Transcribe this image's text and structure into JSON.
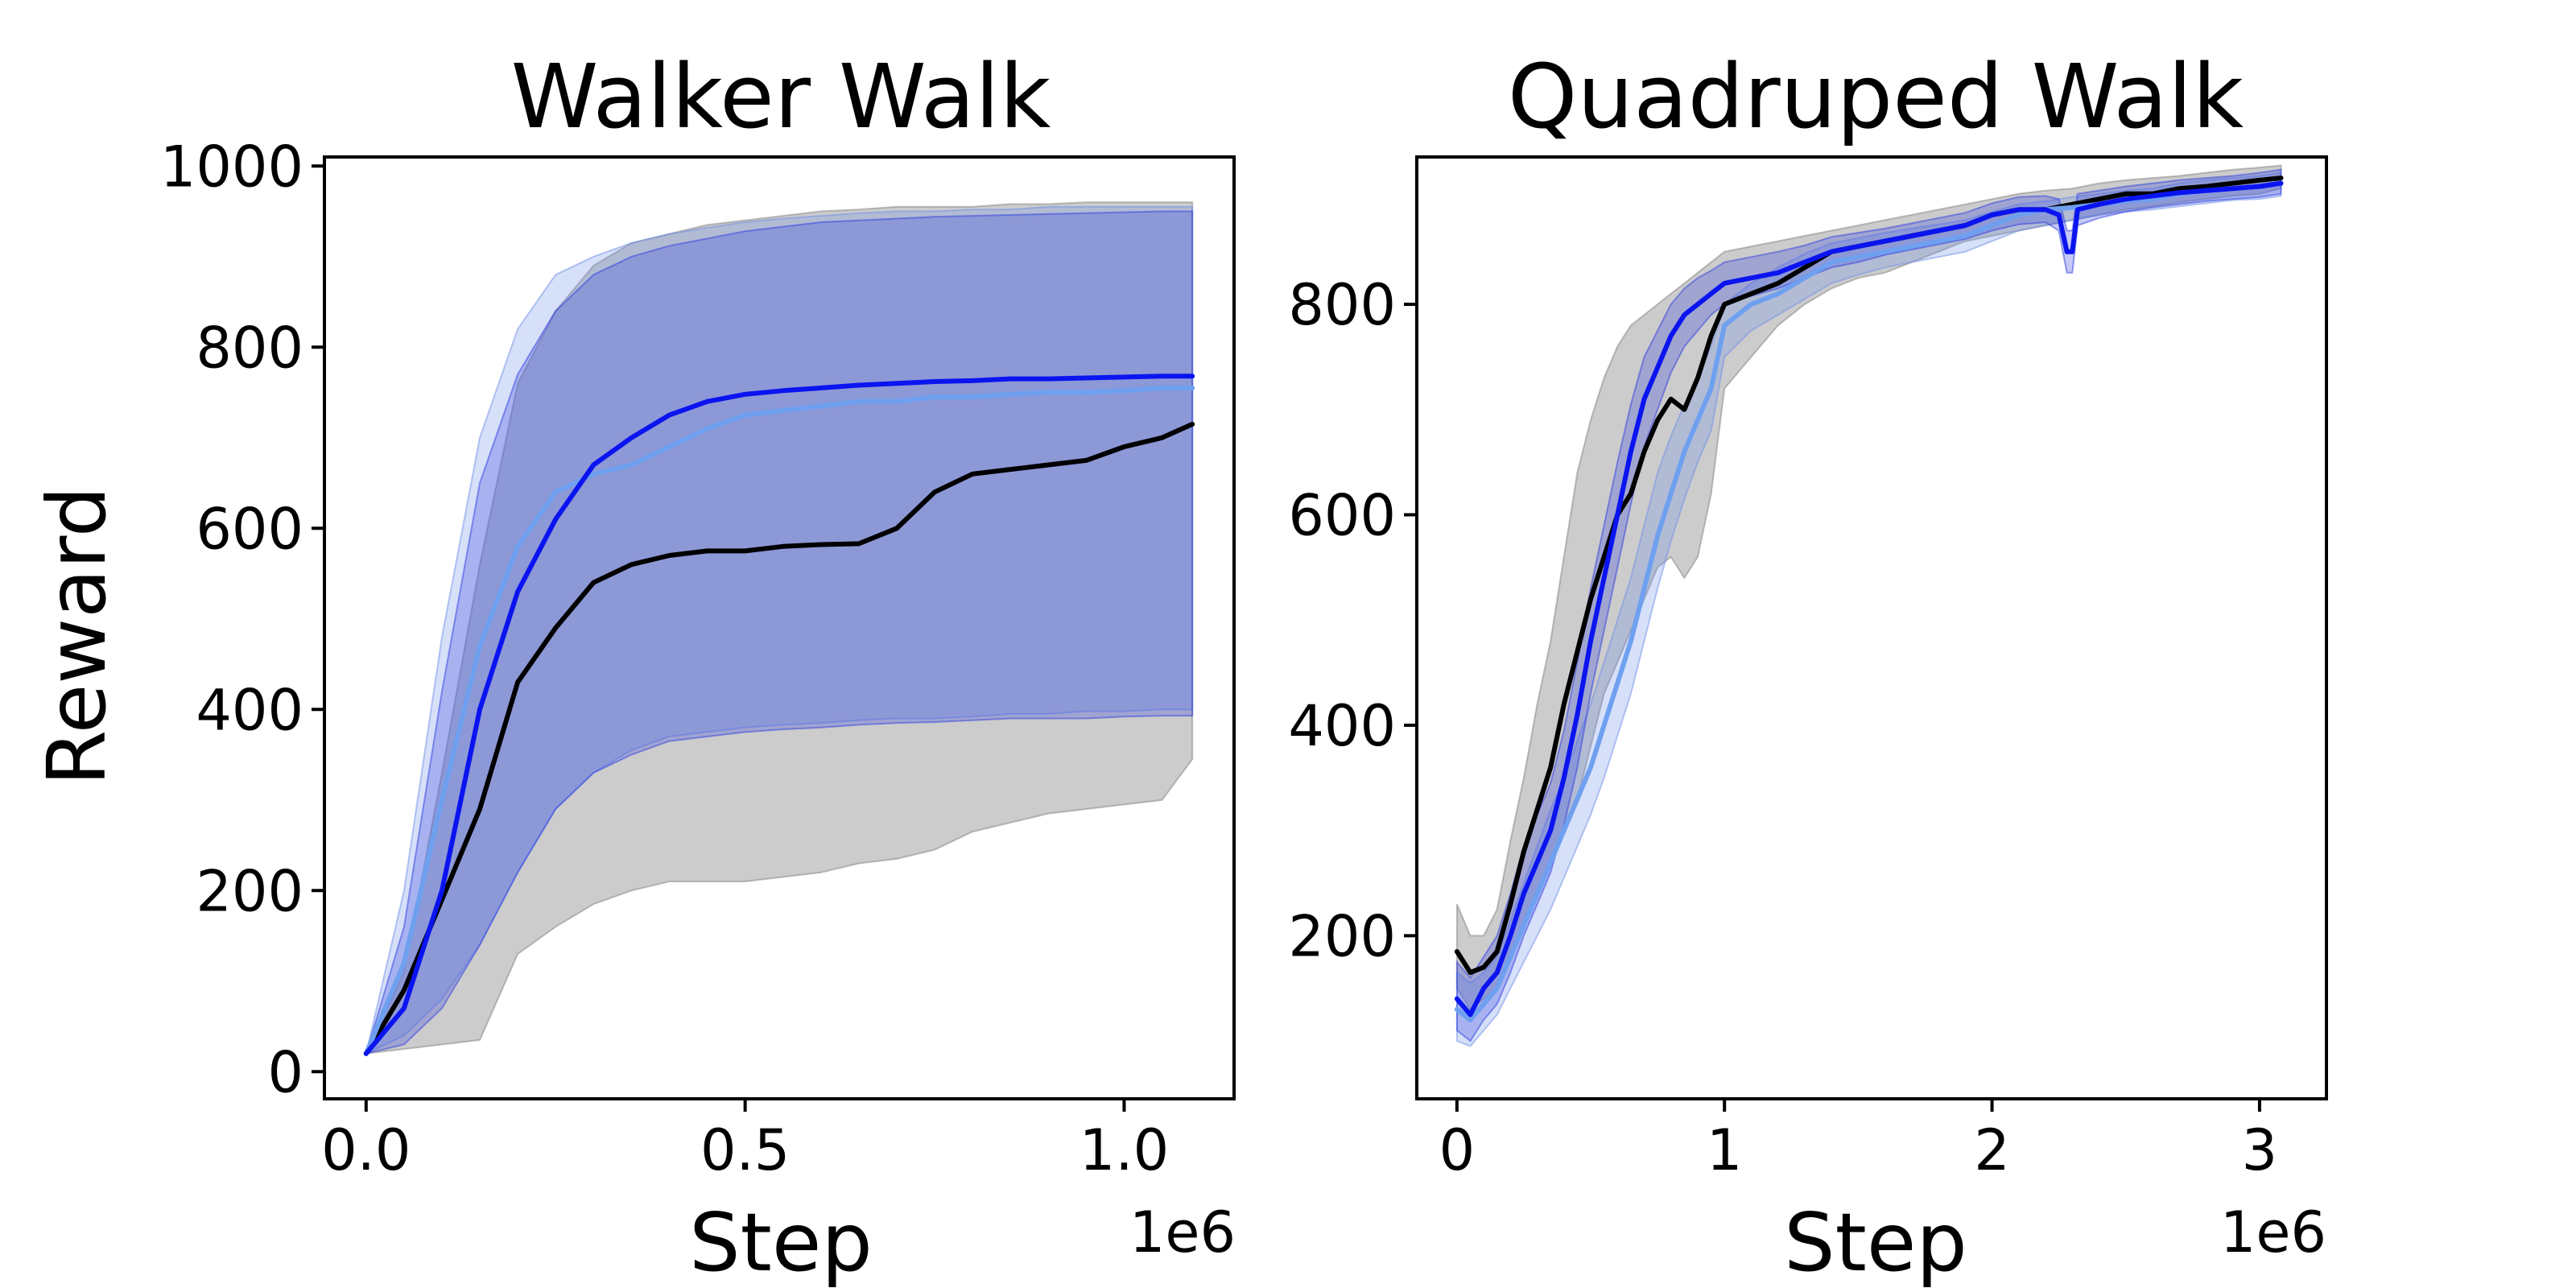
{
  "chart_data": [
    {
      "type": "line",
      "title": "Walker Walk",
      "xlabel": "Step",
      "ylabel": "Reward",
      "x_offset_label": "1e6",
      "xlim": [
        -0.055,
        1.145
      ],
      "ylim": [
        -30,
        1010
      ],
      "xticks": [
        0.0,
        0.5,
        1.0
      ],
      "xtick_labels": [
        "0.0",
        "0.5",
        "1.0"
      ],
      "yticks": [
        0,
        200,
        400,
        600,
        800,
        1000
      ],
      "ytick_labels": [
        "0",
        "200",
        "400",
        "600",
        "800",
        "1000"
      ],
      "grid": false,
      "legend": "none",
      "series": [
        {
          "color": "#000000",
          "band_color": "#7f7f7f",
          "x": [
            0.0,
            0.05,
            0.1,
            0.15,
            0.2,
            0.25,
            0.3,
            0.35,
            0.4,
            0.45,
            0.5,
            0.55,
            0.6,
            0.65,
            0.7,
            0.75,
            0.8,
            0.85,
            0.9,
            0.95,
            1.0,
            1.05,
            1.09
          ],
          "mean": [
            20,
            90,
            190,
            290,
            430,
            490,
            540,
            560,
            570,
            575,
            575,
            580,
            582,
            583,
            600,
            640,
            660,
            665,
            670,
            675,
            690,
            700,
            715
          ],
          "lower": [
            20,
            25,
            30,
            35,
            130,
            160,
            185,
            200,
            210,
            210,
            210,
            215,
            220,
            230,
            235,
            245,
            265,
            275,
            285,
            290,
            295,
            300,
            345
          ],
          "upper": [
            20,
            110,
            330,
            560,
            760,
            840,
            890,
            915,
            925,
            935,
            940,
            945,
            950,
            952,
            955,
            955,
            955,
            958,
            958,
            960,
            960,
            960,
            960
          ]
        },
        {
          "color": "#6fa0f0",
          "band_color": "#6f8fe8",
          "x": [
            0.0,
            0.05,
            0.1,
            0.15,
            0.2,
            0.25,
            0.3,
            0.35,
            0.4,
            0.45,
            0.5,
            0.55,
            0.6,
            0.65,
            0.7,
            0.75,
            0.8,
            0.85,
            0.9,
            0.95,
            1.0,
            1.05,
            1.09
          ],
          "mean": [
            20,
            120,
            300,
            470,
            580,
            640,
            660,
            670,
            690,
            710,
            725,
            730,
            735,
            740,
            740,
            745,
            745,
            748,
            750,
            750,
            752,
            755,
            755
          ],
          "lower": [
            20,
            40,
            80,
            140,
            220,
            290,
            330,
            355,
            370,
            375,
            380,
            383,
            385,
            388,
            390,
            390,
            392,
            395,
            395,
            398,
            398,
            400,
            400
          ],
          "upper": [
            20,
            200,
            480,
            700,
            820,
            880,
            900,
            915,
            925,
            932,
            938,
            942,
            945,
            948,
            950,
            950,
            952,
            952,
            955,
            955,
            955,
            955,
            955
          ]
        },
        {
          "color": "#0a14f0",
          "band_color": "#2d3de0",
          "x": [
            0.0,
            0.05,
            0.1,
            0.15,
            0.2,
            0.25,
            0.3,
            0.35,
            0.4,
            0.45,
            0.5,
            0.55,
            0.6,
            0.65,
            0.7,
            0.75,
            0.8,
            0.85,
            0.9,
            0.95,
            1.0,
            1.05,
            1.09
          ],
          "mean": [
            20,
            70,
            200,
            400,
            530,
            610,
            670,
            700,
            725,
            740,
            748,
            752,
            755,
            758,
            760,
            762,
            763,
            765,
            765,
            766,
            767,
            768,
            768
          ],
          "lower": [
            20,
            30,
            70,
            140,
            220,
            290,
            330,
            350,
            365,
            370,
            375,
            378,
            380,
            383,
            385,
            386,
            388,
            390,
            390,
            390,
            392,
            393,
            393
          ],
          "upper": [
            20,
            160,
            420,
            650,
            770,
            840,
            880,
            900,
            912,
            920,
            928,
            933,
            938,
            940,
            942,
            944,
            945,
            946,
            947,
            948,
            949,
            950,
            950
          ]
        }
      ]
    },
    {
      "type": "line",
      "title": "Quadruped Walk",
      "xlabel": "Step",
      "ylabel": "",
      "x_offset_label": "1e6",
      "xlim": [
        -0.15,
        3.25
      ],
      "ylim": [
        45,
        940
      ],
      "xticks": [
        0,
        1,
        2,
        3
      ],
      "xtick_labels": [
        "0",
        "1",
        "2",
        "3"
      ],
      "yticks": [
        200,
        400,
        600,
        800
      ],
      "ytick_labels": [
        "200",
        "400",
        "600",
        "800"
      ],
      "grid": false,
      "legend": "none",
      "series": [
        {
          "color": "#000000",
          "band_color": "#7f7f7f",
          "x": [
            0.0,
            0.05,
            0.1,
            0.15,
            0.2,
            0.25,
            0.3,
            0.35,
            0.4,
            0.45,
            0.5,
            0.55,
            0.6,
            0.65,
            0.7,
            0.75,
            0.8,
            0.85,
            0.9,
            0.95,
            1.0,
            1.1,
            1.2,
            1.3,
            1.4,
            1.5,
            1.6,
            1.7,
            1.8,
            1.9,
            2.0,
            2.1,
            2.2,
            2.3,
            2.4,
            2.5,
            2.6,
            2.7,
            2.8,
            2.9,
            3.0,
            3.08
          ],
          "mean": [
            185,
            165,
            170,
            185,
            230,
            280,
            320,
            360,
            420,
            470,
            520,
            560,
            600,
            620,
            660,
            690,
            710,
            700,
            730,
            770,
            800,
            810,
            820,
            835,
            850,
            855,
            860,
            865,
            870,
            875,
            885,
            890,
            890,
            895,
            900,
            905,
            905,
            910,
            912,
            915,
            918,
            920
          ],
          "lower": [
            150,
            130,
            140,
            150,
            180,
            210,
            240,
            270,
            300,
            330,
            380,
            430,
            460,
            490,
            520,
            550,
            560,
            540,
            560,
            620,
            720,
            750,
            780,
            800,
            815,
            825,
            830,
            840,
            850,
            860,
            865,
            870,
            875,
            880,
            885,
            890,
            893,
            897,
            900,
            903,
            905,
            910
          ],
          "upper": [
            230,
            200,
            200,
            225,
            290,
            350,
            420,
            480,
            560,
            640,
            690,
            730,
            760,
            780,
            790,
            800,
            810,
            820,
            830,
            840,
            850,
            855,
            860,
            865,
            870,
            875,
            880,
            885,
            890,
            895,
            900,
            905,
            908,
            910,
            915,
            918,
            920,
            922,
            925,
            928,
            930,
            932
          ]
        },
        {
          "color": "#6fa0f0",
          "band_color": "#6f8fe8",
          "x": [
            0.0,
            0.05,
            0.1,
            0.15,
            0.2,
            0.25,
            0.3,
            0.35,
            0.4,
            0.45,
            0.5,
            0.55,
            0.6,
            0.65,
            0.7,
            0.75,
            0.8,
            0.85,
            0.9,
            0.95,
            1.0,
            1.1,
            1.2,
            1.3,
            1.4,
            1.5,
            1.6,
            1.7,
            1.8,
            1.9,
            2.0,
            2.1,
            2.2,
            2.3,
            2.4,
            2.5,
            2.6,
            2.7,
            2.8,
            2.9,
            3.0,
            3.08
          ],
          "mean": [
            130,
            120,
            135,
            150,
            180,
            210,
            240,
            270,
            300,
            330,
            360,
            400,
            440,
            480,
            530,
            580,
            620,
            660,
            690,
            720,
            780,
            800,
            810,
            825,
            840,
            845,
            850,
            855,
            860,
            865,
            875,
            885,
            890,
            892,
            895,
            898,
            900,
            905,
            908,
            910,
            912,
            915
          ],
          "lower": [
            100,
            95,
            110,
            125,
            150,
            175,
            200,
            225,
            255,
            285,
            315,
            350,
            390,
            430,
            480,
            530,
            575,
            615,
            650,
            680,
            750,
            775,
            790,
            805,
            820,
            828,
            835,
            840,
            845,
            850,
            860,
            870,
            875,
            880,
            885,
            888,
            890,
            893,
            896,
            899,
            900,
            903
          ],
          "upper": [
            165,
            155,
            165,
            180,
            215,
            250,
            285,
            320,
            350,
            385,
            420,
            460,
            500,
            540,
            590,
            640,
            675,
            705,
            730,
            760,
            800,
            820,
            835,
            848,
            858,
            863,
            868,
            872,
            876,
            880,
            888,
            895,
            898,
            902,
            905,
            908,
            910,
            915,
            918,
            920,
            922,
            925
          ]
        },
        {
          "color": "#0a14f0",
          "band_color": "#2d3de0",
          "x": [
            0.0,
            0.05,
            0.1,
            0.15,
            0.2,
            0.25,
            0.3,
            0.35,
            0.4,
            0.45,
            0.5,
            0.55,
            0.6,
            0.65,
            0.7,
            0.75,
            0.8,
            0.85,
            0.9,
            0.95,
            1.0,
            1.1,
            1.2,
            1.3,
            1.4,
            1.5,
            1.6,
            1.7,
            1.8,
            1.9,
            2.0,
            2.1,
            2.2,
            2.25,
            2.28,
            2.3,
            2.32,
            2.4,
            2.5,
            2.6,
            2.7,
            2.8,
            2.9,
            3.0,
            3.08
          ],
          "mean": [
            140,
            125,
            150,
            165,
            200,
            240,
            270,
            300,
            350,
            410,
            480,
            540,
            600,
            660,
            710,
            740,
            770,
            790,
            800,
            810,
            820,
            825,
            830,
            840,
            850,
            855,
            860,
            865,
            870,
            875,
            885,
            890,
            890,
            885,
            850,
            850,
            890,
            895,
            900,
            903,
            906,
            908,
            910,
            912,
            915
          ],
          "lower": [
            110,
            100,
            120,
            135,
            165,
            200,
            230,
            260,
            305,
            360,
            430,
            490,
            550,
            610,
            665,
            700,
            735,
            760,
            775,
            790,
            800,
            808,
            815,
            825,
            835,
            840,
            847,
            852,
            857,
            862,
            870,
            876,
            878,
            870,
            830,
            830,
            875,
            882,
            888,
            892,
            895,
            898,
            900,
            902,
            905
          ],
          "upper": [
            175,
            160,
            180,
            200,
            240,
            285,
            315,
            345,
            395,
            460,
            530,
            590,
            650,
            705,
            750,
            775,
            800,
            815,
            825,
            832,
            840,
            845,
            850,
            856,
            864,
            868,
            872,
            877,
            882,
            887,
            896,
            902,
            903,
            900,
            870,
            870,
            905,
            908,
            912,
            915,
            918,
            920,
            922,
            925,
            928
          ]
        }
      ]
    }
  ]
}
